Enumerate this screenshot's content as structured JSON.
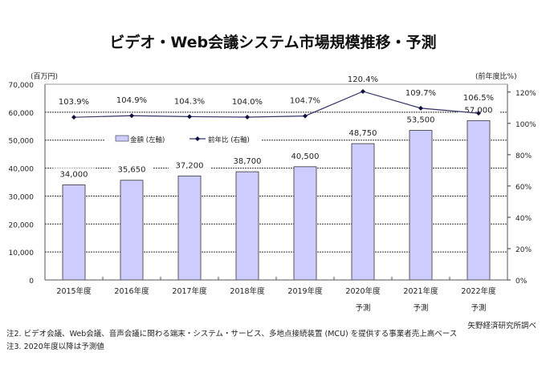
{
  "chart_data": {
    "type": "bar+line",
    "title": "ビデオ・Web会議システム市場規模推移・予測",
    "categories": [
      "2015年度",
      "2016年度",
      "2017年度",
      "2018年度",
      "2019年度",
      "2020年度",
      "2021年度",
      "2022年度"
    ],
    "category_sublabels": [
      "",
      "",
      "",
      "",
      "",
      "予測",
      "予測",
      "予測"
    ],
    "left_axis": {
      "label": "(百万円)",
      "range": [
        0,
        70000
      ],
      "ticks": [
        "0",
        "10,000",
        "20,000",
        "30,000",
        "40,000",
        "50,000",
        "60,000",
        "70,000"
      ]
    },
    "right_axis": {
      "label": "(前年度比%)",
      "range": [
        0,
        125
      ],
      "ticks": [
        "0%",
        "20%",
        "40%",
        "60%",
        "80%",
        "100%",
        "120%"
      ]
    },
    "series": [
      {
        "name": "金額 (左軸)",
        "type": "bar",
        "axis": "left",
        "values": [
          34000,
          35650,
          37200,
          38700,
          40500,
          48750,
          53500,
          57000
        ],
        "labels": [
          "34,000",
          "35,650",
          "37,200",
          "38,700",
          "40,500",
          "48,750",
          "53,500",
          "57,000"
        ],
        "color": "#ccccff"
      },
      {
        "name": "前年比 (右軸)",
        "type": "line",
        "axis": "right",
        "values": [
          103.9,
          104.9,
          104.3,
          104.0,
          104.7,
          120.4,
          109.7,
          106.5
        ],
        "labels": [
          "103.9%",
          "104.9%",
          "104.3%",
          "104.0%",
          "104.7%",
          "120.4%",
          "109.7%",
          "106.5%"
        ],
        "color": "#333366"
      }
    ],
    "grid": true,
    "legend": "upper-left"
  },
  "notes": [
    "注2. ビデオ会議、Web会議、音声会議に関わる端末・システム・サービス、多地点接続装置 (MCU) を提供する事業者売上高ベース",
    "注3. 2020年度以降は予測値"
  ],
  "source": "矢野経済研究所調べ"
}
